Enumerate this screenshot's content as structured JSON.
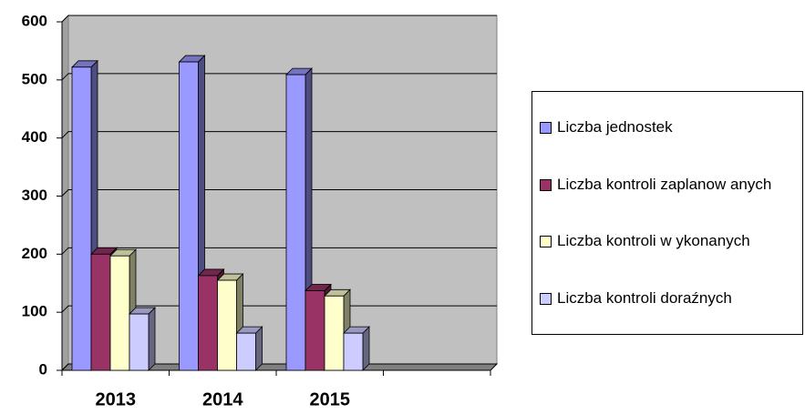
{
  "chart_data": {
    "type": "bar3d",
    "categories": [
      "2013",
      "2014",
      "2015",
      null
    ],
    "series": [
      {
        "name": "Liczba jednostek",
        "color": "#9999ff",
        "values": [
          522,
          531,
          509,
          null
        ]
      },
      {
        "name": "Liczba kontroli zaplanow anych",
        "color": "#993366",
        "values": [
          200,
          163,
          137,
          null
        ]
      },
      {
        "name": "Liczba kontroli w ykonanych",
        "color": "#ffffcc",
        "values": [
          197,
          155,
          128,
          null
        ]
      },
      {
        "name": "Liczba kontroli doraźnych",
        "color": "#ccccff",
        "values": [
          97,
          64,
          64,
          null
        ]
      }
    ],
    "ylim": [
      0,
      600
    ],
    "yticks": [
      0,
      100,
      200,
      300,
      400,
      500,
      600
    ],
    "grid": true,
    "legend": "right"
  }
}
